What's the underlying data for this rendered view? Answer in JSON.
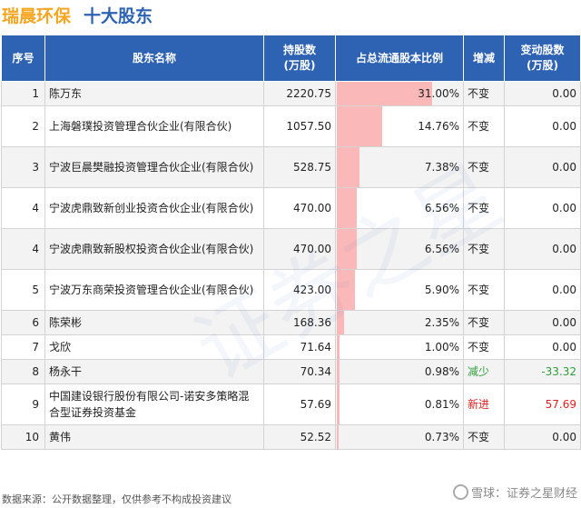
{
  "header": {
    "company": "瑞晨环保",
    "section": "十大股东"
  },
  "columns": [
    "序号",
    "股东名称",
    "持股数\n(万股)",
    "占总流通股本比例",
    "增减",
    "变动股数\n(万股)"
  ],
  "rows": [
    {
      "rank": "1",
      "name": "陈万东",
      "shares": "2220.75",
      "ratio": "31.00%",
      "ratio_value": 31.0,
      "change": "不变",
      "delta": "0.00",
      "type": "same"
    },
    {
      "rank": "2",
      "name": "上海磐璞投资管理合伙企业(有限合伙)",
      "shares": "1057.50",
      "ratio": "14.76%",
      "ratio_value": 14.76,
      "change": "不变",
      "delta": "0.00",
      "type": "same"
    },
    {
      "rank": "3",
      "name": "宁波巨晨樊融投资管理合伙企业(有限合伙)",
      "shares": "528.75",
      "ratio": "7.38%",
      "ratio_value": 7.38,
      "change": "不变",
      "delta": "0.00",
      "type": "same"
    },
    {
      "rank": "4",
      "name": "宁波虎鼎致新创业投资合伙企业(有限合伙)",
      "shares": "470.00",
      "ratio": "6.56%",
      "ratio_value": 6.56,
      "change": "不变",
      "delta": "0.00",
      "type": "same"
    },
    {
      "rank": "4",
      "name": "宁波虎鼎致新股权投资合伙企业(有限合伙)",
      "shares": "470.00",
      "ratio": "6.56%",
      "ratio_value": 6.56,
      "change": "不变",
      "delta": "0.00",
      "type": "same"
    },
    {
      "rank": "5",
      "name": "宁波万东商荣投资管理合伙企业(有限合伙)",
      "shares": "423.00",
      "ratio": "5.90%",
      "ratio_value": 5.9,
      "change": "不变",
      "delta": "0.00",
      "type": "same"
    },
    {
      "rank": "6",
      "name": "陈荣彬",
      "shares": "168.36",
      "ratio": "2.35%",
      "ratio_value": 2.35,
      "change": "不变",
      "delta": "0.00",
      "type": "same"
    },
    {
      "rank": "7",
      "name": "戈欣",
      "shares": "71.64",
      "ratio": "1.00%",
      "ratio_value": 1.0,
      "change": "不变",
      "delta": "0.00",
      "type": "same"
    },
    {
      "rank": "8",
      "name": "杨永干",
      "shares": "70.34",
      "ratio": "0.98%",
      "ratio_value": 0.98,
      "change": "减少",
      "delta": "-33.32",
      "type": "down"
    },
    {
      "rank": "9",
      "name": "中国建设银行股份有限公司-诺安多策略混合型证券投资基金",
      "shares": "57.69",
      "ratio": "0.81%",
      "ratio_value": 0.81,
      "change": "新进",
      "delta": "57.69",
      "type": "up"
    },
    {
      "rank": "10",
      "name": "黄伟",
      "shares": "52.52",
      "ratio": "0.73%",
      "ratio_value": 0.73,
      "change": "不变",
      "delta": "0.00",
      "type": "same"
    }
  ],
  "footer": {
    "source": "数据来源：公开数据整理，仅供参考不构成投资建议",
    "brand": "雪球：证券之星财经"
  },
  "watermark": "证券之星",
  "colors": {
    "header_bg": "#2e62b3",
    "bar": "#fbb8b8",
    "up": "#e02020",
    "down": "#2e9e3a",
    "title_orange": "#f5a623"
  }
}
